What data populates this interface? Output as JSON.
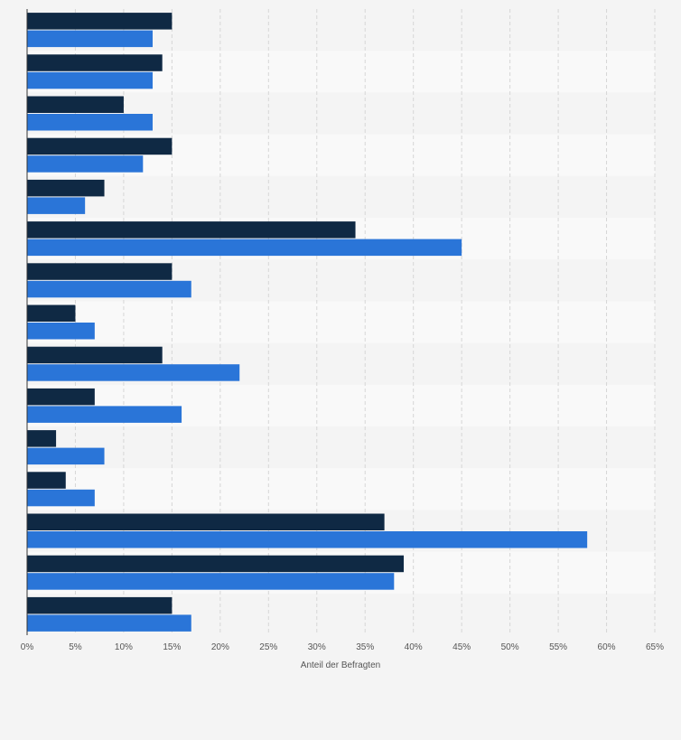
{
  "chart_data": {
    "type": "bar",
    "orientation": "horizontal",
    "xlabel": "Anteil der Befragten",
    "ylabel": "",
    "xlim": [
      0,
      65
    ],
    "x_ticks": [
      "0%",
      "5%",
      "10%",
      "15%",
      "20%",
      "25%",
      "30%",
      "35%",
      "40%",
      "45%",
      "50%",
      "55%",
      "60%",
      "65%"
    ],
    "grid": true,
    "legend": "none",
    "colors": {
      "series_1": "#0f2944",
      "series_2": "#2a75d8",
      "band": "#f9f9f9",
      "grid": "#d6d6d6"
    },
    "categories": [
      "",
      "",
      "",
      "",
      "",
      "",
      "",
      "",
      "",
      "",
      "",
      "",
      "",
      "",
      ""
    ],
    "series": [
      {
        "values": [
          15,
          14,
          10,
          15,
          8,
          34,
          15,
          5,
          14,
          7,
          3,
          4,
          37,
          39,
          15
        ]
      },
      {
        "values": [
          13,
          13,
          13,
          12,
          6,
          45,
          17,
          7,
          22,
          16,
          8,
          7,
          58,
          38,
          17
        ]
      }
    ]
  }
}
